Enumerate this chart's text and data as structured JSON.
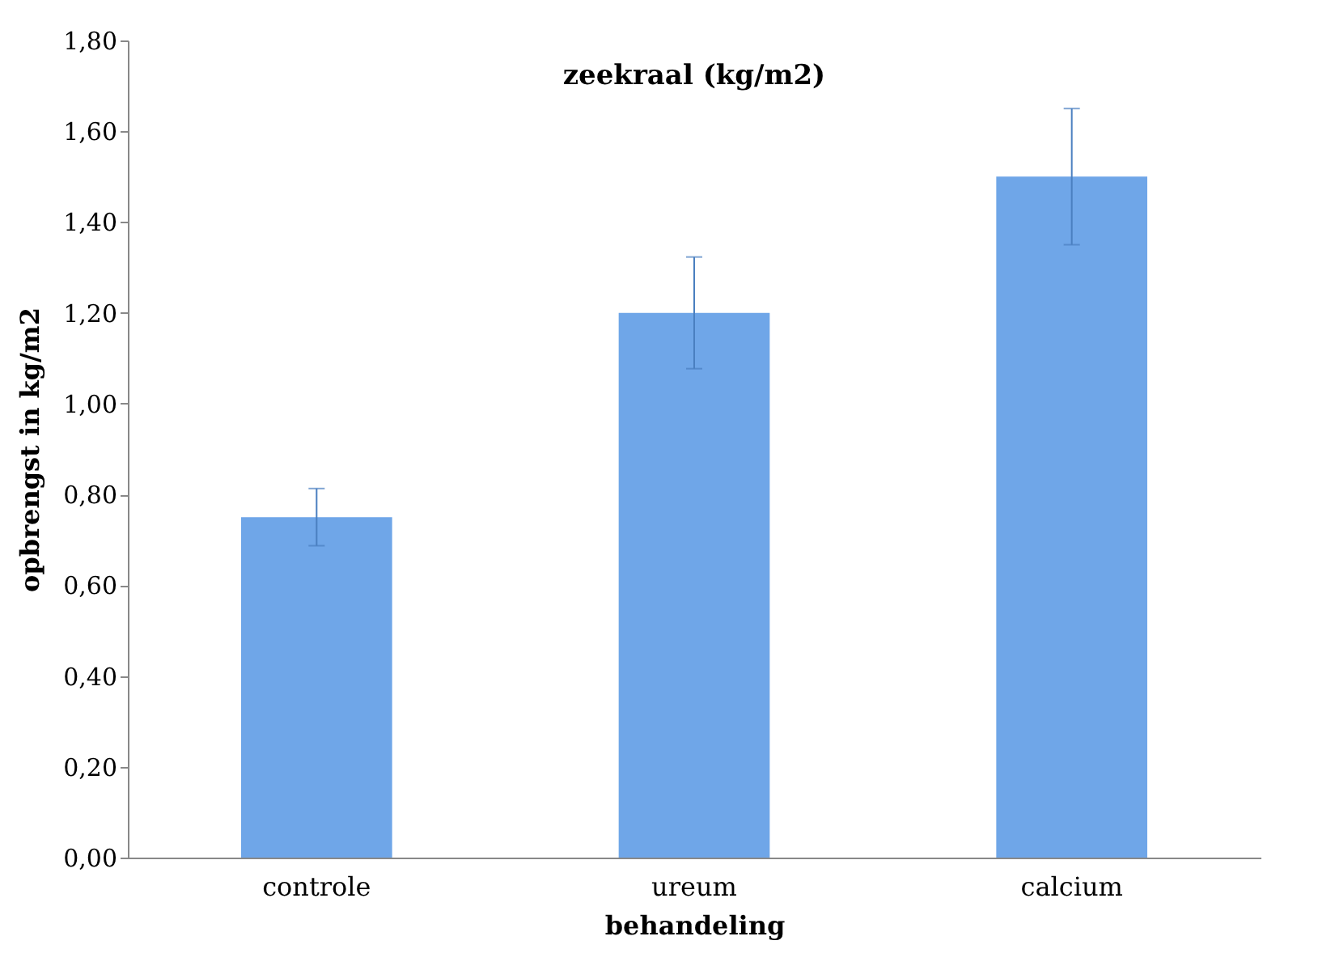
{
  "chart_data": {
    "type": "bar",
    "title": "zeekraal (kg/m2)",
    "xlabel": "behandeling",
    "ylabel": "opbrengst in kg/m2",
    "categories": [
      "controle",
      "ureum",
      "calcium"
    ],
    "values": [
      0.75,
      1.2,
      1.5
    ],
    "errors": [
      0.063,
      0.123,
      0.15
    ],
    "color": "#6fa6e8",
    "ylim": [
      0,
      1.8
    ],
    "yticks": [
      {
        "value": 0,
        "label": "0,00"
      },
      {
        "value": 0.2,
        "label": "0,20"
      },
      {
        "value": 0.4,
        "label": "0,40"
      },
      {
        "value": 0.6,
        "label": "0,60"
      },
      {
        "value": 0.8,
        "label": "0,80"
      },
      {
        "value": 1.0,
        "label": "1,00"
      },
      {
        "value": 1.2,
        "label": "1,20"
      },
      {
        "value": 1.4,
        "label": "1,40"
      },
      {
        "value": 1.6,
        "label": "1,60"
      },
      {
        "value": 1.8,
        "label": "1,80"
      }
    ],
    "grid": false
  }
}
